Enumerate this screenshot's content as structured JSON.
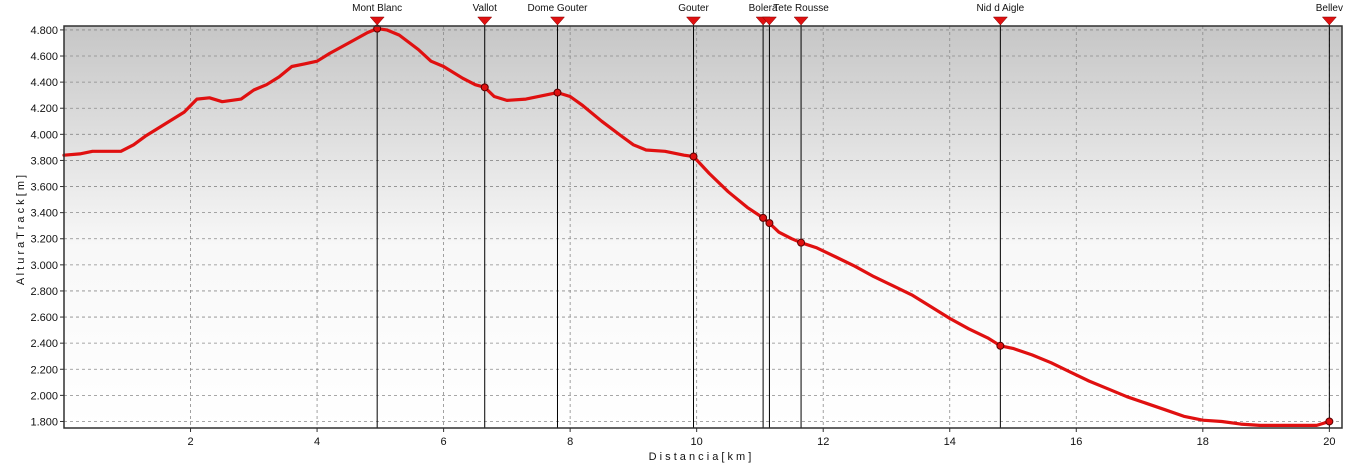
{
  "chart_data": {
    "type": "line",
    "title": "",
    "xlabel": "D i s t a n c i a   [ k m ]",
    "ylabel": "A l t u r a   T r a c k   [ m ]",
    "xlim": [
      0,
      20.2
    ],
    "ylim": [
      1750,
      4830
    ],
    "x_ticks": [
      2,
      4,
      6,
      8,
      10,
      12,
      14,
      16,
      18,
      20
    ],
    "y_ticks": [
      1800,
      2000,
      2200,
      2400,
      2600,
      2800,
      3000,
      3200,
      3400,
      3600,
      3800,
      4000,
      4200,
      4400,
      4600,
      4800
    ],
    "x_tick_labels": [
      "2",
      "4",
      "6",
      "8",
      "10",
      "12",
      "14",
      "16",
      "18",
      "20"
    ],
    "y_tick_labels": [
      "1.800",
      "2.000",
      "2.200",
      "2.400",
      "2.600",
      "2.800",
      "3.000",
      "3.200",
      "3.400",
      "3.600",
      "3.800",
      "4.000",
      "4.200",
      "4.400",
      "4.600",
      "4.800"
    ],
    "grid": true,
    "line_color": "#e01010",
    "series": [
      {
        "x": [
          0,
          0.25,
          0.45,
          0.6,
          0.75,
          0.9,
          1.1,
          1.3,
          1.6,
          1.9,
          2.1,
          2.3,
          2.5,
          2.8,
          3.0,
          3.2,
          3.4,
          3.6,
          3.8,
          4.0,
          4.2,
          4.5,
          4.8,
          4.95,
          5.1,
          5.3,
          5.6,
          5.8,
          6.0,
          6.3,
          6.5,
          6.65,
          6.8,
          7.0,
          7.3,
          7.6,
          7.8,
          8.0,
          8.2,
          8.5,
          8.8,
          9.0,
          9.2,
          9.5,
          9.8,
          9.95,
          10.2,
          10.5,
          10.8,
          11.05,
          11.15,
          11.3,
          11.5,
          11.65,
          11.9,
          12.2,
          12.5,
          12.8,
          13.1,
          13.4,
          13.7,
          14.0,
          14.3,
          14.6,
          14.8,
          15.0,
          15.3,
          15.6,
          15.9,
          16.2,
          16.5,
          16.8,
          17.1,
          17.4,
          17.7,
          18.0,
          18.3,
          18.6,
          18.9,
          19.2,
          19.5,
          19.8,
          20.0
        ],
        "y": [
          3840,
          3850,
          3870,
          3870,
          3870,
          3870,
          3920,
          3990,
          4080,
          4170,
          4270,
          4280,
          4250,
          4270,
          4340,
          4380,
          4440,
          4520,
          4540,
          4560,
          4620,
          4700,
          4780,
          4810,
          4800,
          4760,
          4650,
          4560,
          4520,
          4430,
          4380,
          4360,
          4290,
          4260,
          4270,
          4300,
          4320,
          4290,
          4220,
          4100,
          3990,
          3920,
          3880,
          3870,
          3840,
          3830,
          3700,
          3560,
          3440,
          3360,
          3320,
          3250,
          3200,
          3170,
          3130,
          3060,
          2990,
          2910,
          2840,
          2770,
          2680,
          2590,
          2510,
          2440,
          2380,
          2360,
          2310,
          2250,
          2180,
          2110,
          2050,
          1990,
          1940,
          1890,
          1840,
          1810,
          1800,
          1780,
          1770,
          1770,
          1770,
          1770,
          1800
        ]
      }
    ],
    "waypoints": [
      {
        "label": "Mont Blanc",
        "x": 4.95,
        "y": 4810
      },
      {
        "label": "Vallot",
        "x": 6.65,
        "y": 4360
      },
      {
        "label": "Dome Gouter",
        "x": 7.8,
        "y": 4320
      },
      {
        "label": "Gouter",
        "x": 9.95,
        "y": 3830
      },
      {
        "label": "Bolera",
        "x": 11.05,
        "y": 3360
      },
      {
        "label": "",
        "x": 11.15,
        "y": 3320
      },
      {
        "label": "Tete Rousse",
        "x": 11.65,
        "y": 3170
      },
      {
        "label": "Nid d Aigle",
        "x": 14.8,
        "y": 2380
      },
      {
        "label": "Bellev",
        "x": 20.0,
        "y": 1800
      }
    ]
  }
}
